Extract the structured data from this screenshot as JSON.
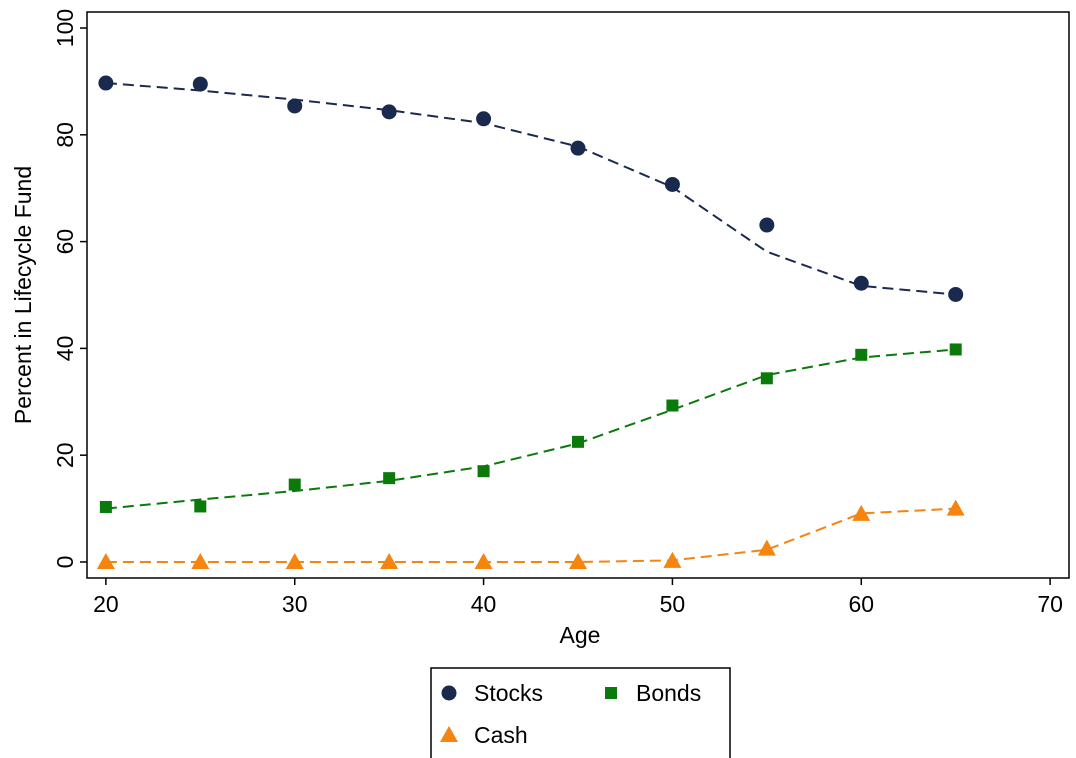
{
  "chart_data": {
    "type": "line",
    "title": "",
    "xlabel": "Age",
    "ylabel": "Percent in Lifecycle Fund",
    "xlim": [
      19,
      71
    ],
    "ylim": [
      -3,
      103
    ],
    "xticks": [
      20,
      30,
      40,
      50,
      60,
      70
    ],
    "yticks": [
      0,
      20,
      40,
      60,
      80,
      100
    ],
    "x": [
      20,
      25,
      30,
      35,
      40,
      45,
      50,
      55,
      60,
      65
    ],
    "series": [
      {
        "name": "Stocks",
        "color": "#1a2a4f",
        "marker": "circle",
        "points": [
          89.7,
          89.5,
          85.4,
          84.3,
          83.0,
          77.5,
          70.7,
          63.1,
          52.2,
          50.1
        ],
        "fit": [
          89.7,
          88.3,
          86.6,
          84.6,
          82.2,
          77.8,
          70.2,
          58.1,
          51.7,
          50.1
        ]
      },
      {
        "name": "Bonds",
        "color": "#0b7a0b",
        "marker": "square",
        "points": [
          10.3,
          10.4,
          14.5,
          15.7,
          17.0,
          22.5,
          29.3,
          34.4,
          38.8,
          39.8
        ],
        "fit": [
          10.0,
          11.7,
          13.3,
          15.2,
          17.9,
          22.2,
          28.5,
          35.0,
          38.3,
          39.8
        ]
      },
      {
        "name": "Cash",
        "color": "#f5850e",
        "marker": "triangle",
        "points": [
          0.0,
          0.0,
          0.0,
          0.0,
          0.0,
          0.0,
          0.2,
          2.5,
          9.0,
          10.0
        ],
        "fit": [
          0.0,
          0.0,
          0.0,
          0.0,
          0.0,
          0.0,
          0.3,
          2.3,
          9.1,
          10.0
        ]
      }
    ],
    "legend": {
      "position": "bottom",
      "items": [
        "Stocks",
        "Bonds",
        "Cash"
      ]
    },
    "grid": false
  }
}
